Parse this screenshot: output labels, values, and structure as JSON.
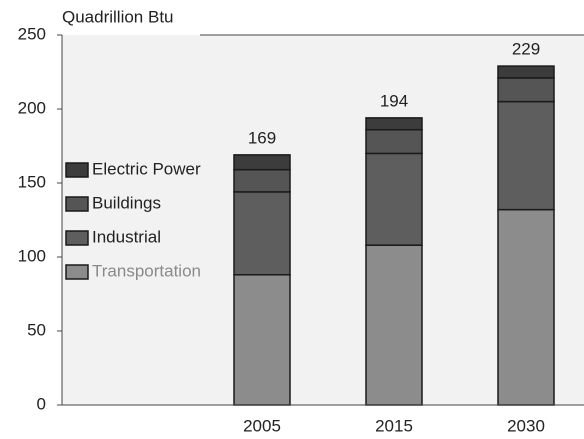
{
  "chart_data": {
    "type": "stacked_bar",
    "title": "Quadrillion Btu",
    "categories": [
      "2005",
      "2015",
      "2030"
    ],
    "series": [
      {
        "name": "Transportation",
        "color": "#8c8c8c",
        "values": [
          88,
          108,
          132
        ]
      },
      {
        "name": "Industrial",
        "color": "#5e5e5e",
        "values": [
          56,
          62,
          73
        ]
      },
      {
        "name": "Buildings",
        "color": "#555555",
        "values": [
          15,
          16,
          16
        ]
      },
      {
        "name": "Electric Power",
        "color": "#3c3c3c",
        "values": [
          10,
          8,
          8
        ]
      }
    ],
    "totals": [
      169,
      194,
      229
    ],
    "ylim": [
      0,
      250
    ],
    "yticks": [
      0,
      50,
      100,
      150,
      200,
      250
    ],
    "legend": "left"
  }
}
